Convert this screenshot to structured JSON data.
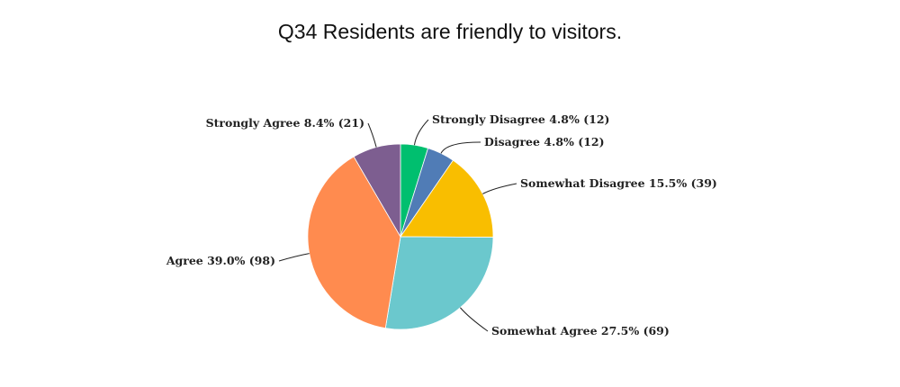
{
  "chart_data": {
    "type": "pie",
    "title": "Q34 Residents are friendly to visitors.",
    "slices": [
      {
        "label": "Strongly Disagree",
        "percent": 4.8,
        "count": 12,
        "color": "#00BF6F",
        "text": "Strongly Disagree 4.8% (12)"
      },
      {
        "label": "Disagree",
        "percent": 4.8,
        "count": 12,
        "color": "#507CB6",
        "text": "Disagree 4.8% (12)"
      },
      {
        "label": "Somewhat Disagree",
        "percent": 15.5,
        "count": 39,
        "color": "#F9BE00",
        "text": "Somewhat Disagree 15.5% (39)"
      },
      {
        "label": "Somewhat Agree",
        "percent": 27.5,
        "count": 69,
        "color": "#6BC8CD",
        "text": "Somewhat Agree 27.5% (69)"
      },
      {
        "label": "Agree",
        "percent": 39.0,
        "count": 98,
        "color": "#FF8B4F",
        "text": "Agree 39.0% (98)"
      },
      {
        "label": "Strongly Agree",
        "percent": 8.4,
        "count": 21,
        "color": "#7D5E90",
        "text": "Strongly Agree 8.4% (21)"
      }
    ],
    "start_angle": "12 o'clock",
    "direction": "clockwise",
    "legend": "none"
  }
}
